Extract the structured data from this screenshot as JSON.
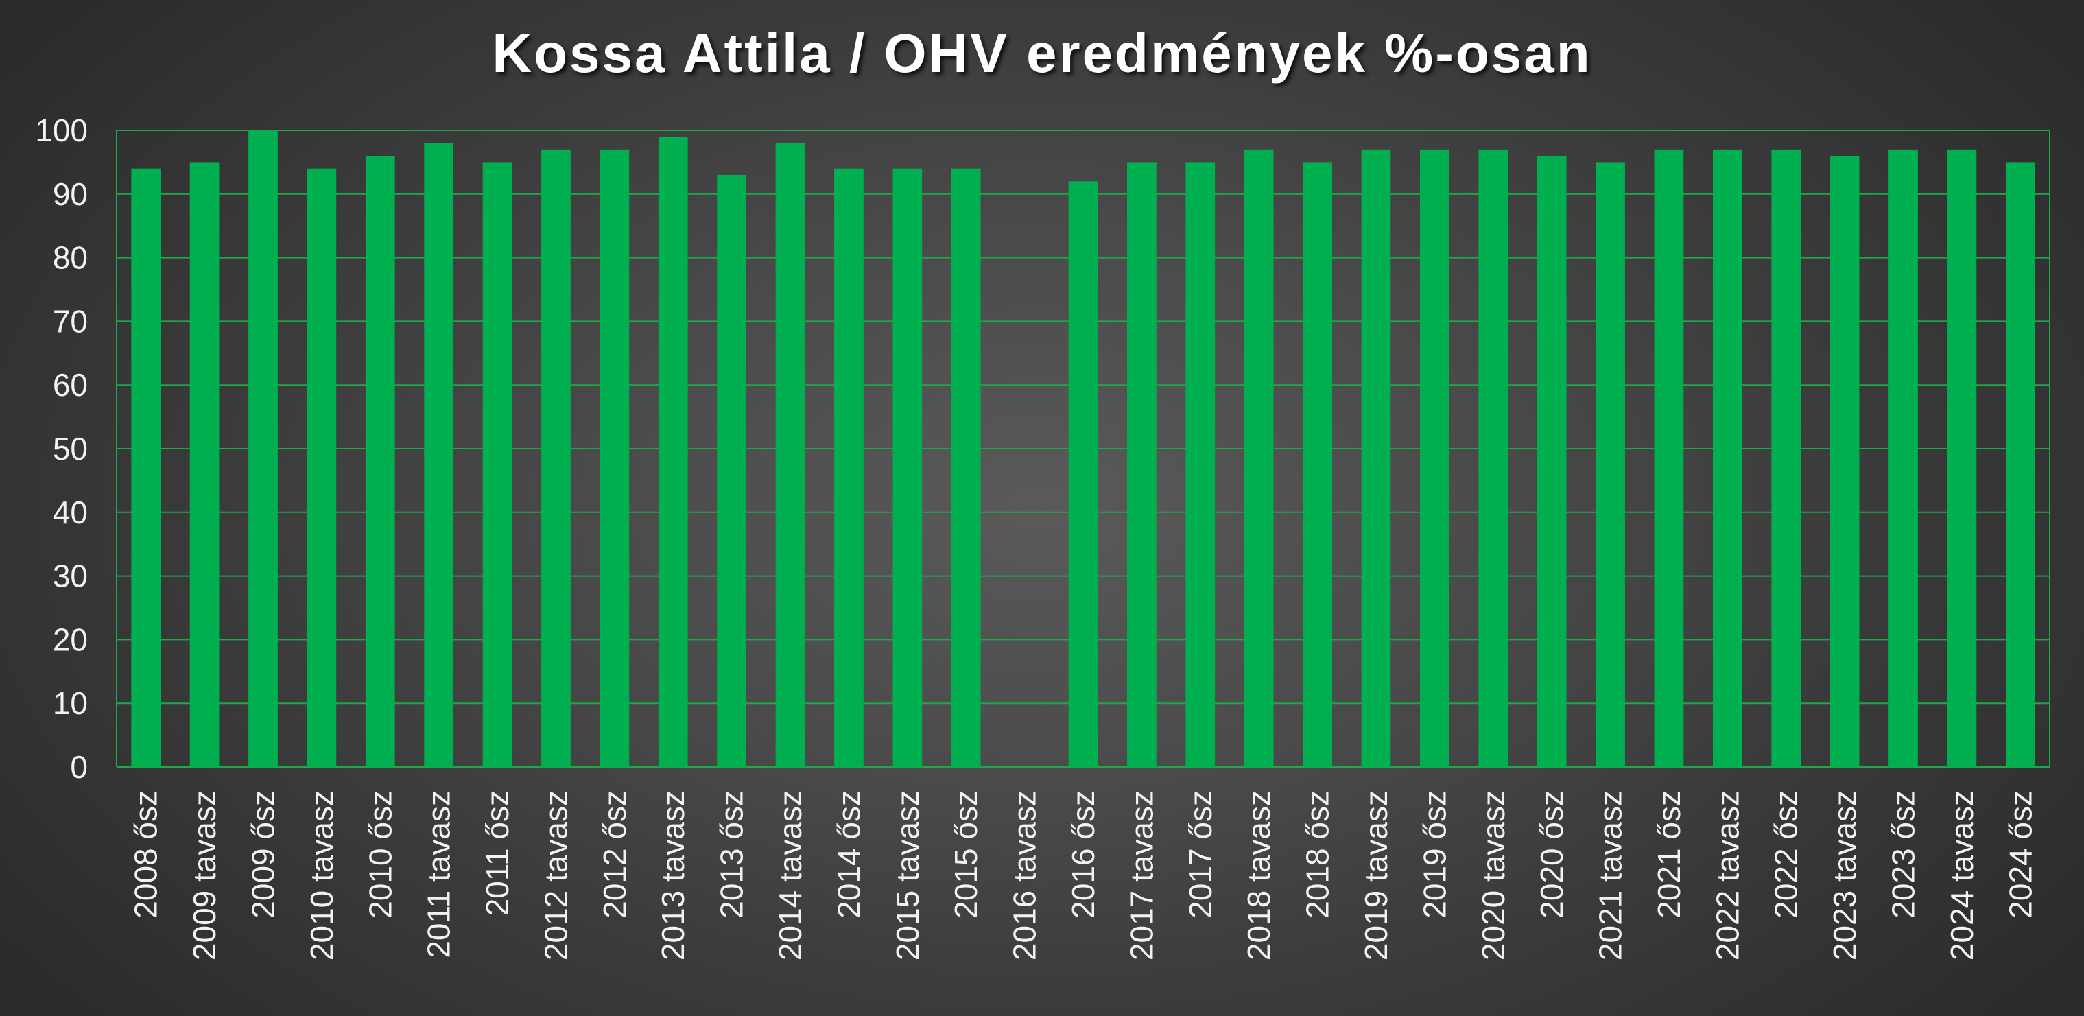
{
  "chart_data": {
    "type": "bar",
    "title": "Kossa Attila / OHV eredmények %-osan",
    "xlabel": "",
    "ylabel": "",
    "ylim": [
      0,
      100
    ],
    "yticks": [
      0,
      10,
      20,
      30,
      40,
      50,
      60,
      70,
      80,
      90,
      100
    ],
    "grid": true,
    "legend": "none",
    "categories": [
      "2008 ősz",
      "2009 tavasz",
      "2009 ősz",
      "2010 tavasz",
      "2010 ősz",
      "2011 tavasz",
      "2011 ősz",
      "2012 tavasz",
      "2012 ősz",
      "2013 tavasz",
      "2013 ősz",
      "2014 tavasz",
      "2014 ősz",
      "2015 tavasz",
      "2015 ősz",
      "2016 tavasz",
      "2016 ősz",
      "2017 tavasz",
      "2017 ősz",
      "2018 tavasz",
      "2018 ősz",
      "2019 tavasz",
      "2019 ősz",
      "2020 tavasz",
      "2020 ősz",
      "2021 tavasz",
      "2021 ősz",
      "2022 tavasz",
      "2022 ősz",
      "2023 tavasz",
      "2023 ősz",
      "2024 tavasz",
      "2024 ősz"
    ],
    "values": [
      94,
      95,
      100,
      94,
      96,
      98,
      95,
      97,
      97,
      99,
      93,
      98,
      94,
      94,
      94,
      null,
      92,
      95,
      95,
      97,
      95,
      97,
      97,
      97,
      96,
      95,
      97,
      97,
      97,
      96,
      97,
      97,
      95
    ],
    "colors": {
      "bar": "#00b050",
      "grid": "#1fa84a",
      "text": "#f2f2f2"
    }
  }
}
